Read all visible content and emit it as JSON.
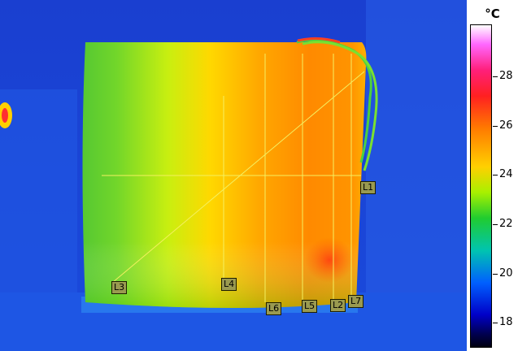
{
  "scale": {
    "unit": "°C",
    "ticks": [
      "28",
      "26",
      "24",
      "22",
      "20",
      "18"
    ]
  },
  "markers": [
    "L1",
    "L2",
    "L3",
    "L4",
    "L5",
    "L6",
    "L7"
  ],
  "colors": {
    "background": "#1f4fd8",
    "marker_line": "#f4f060",
    "marker_label_bg": "#9a9a50"
  }
}
